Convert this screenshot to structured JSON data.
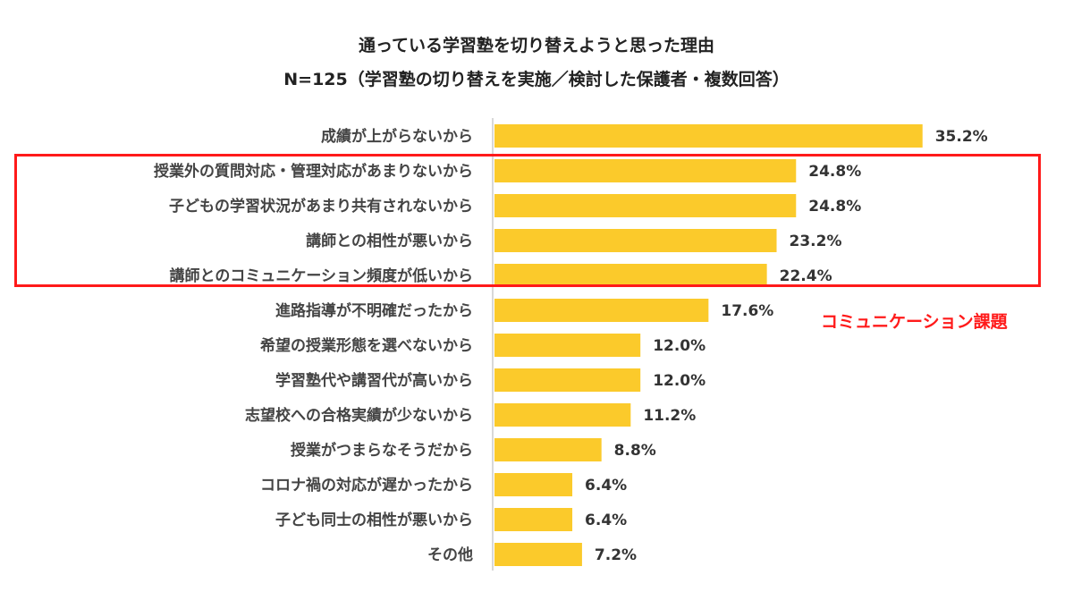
{
  "chart_data": {
    "type": "bar",
    "orientation": "horizontal",
    "title": "通っている学習塾を切り替えようと思った理由",
    "subtitle": "N=125（学習塾の切り替えを実施／検討した保護者・複数回答）",
    "categories": [
      "成績が上がらないから",
      "授業外の質問対応・管理対応があまりないから",
      "子どもの学習状況があまり共有されないから",
      "講師との相性が悪いから",
      "講師とのコミュニケーション頻度が低いから",
      "進路指導が不明確だったから",
      "希望の授業形態を選べないから",
      "学習塾代や講習代が高いから",
      "志望校への合格実績が少ないから",
      "授業がつまらなそうだから",
      "コロナ禍の対応が遅かったから",
      "子ども同士の相性が悪いから",
      "その他"
    ],
    "values": [
      35.2,
      24.8,
      24.8,
      23.2,
      22.4,
      17.6,
      12.0,
      12.0,
      11.2,
      8.8,
      6.4,
      6.4,
      7.2
    ],
    "value_labels": [
      "35.2%",
      "24.8%",
      "24.8%",
      "23.2%",
      "22.4%",
      "17.6%",
      "12.0%",
      "12.0%",
      "11.2%",
      "8.8%",
      "6.4%",
      "6.4%",
      "7.2%"
    ],
    "unit": "%",
    "bar_color": "#fbca2b",
    "axis_color": "#cccccc",
    "highlight": {
      "categories": [
        "授業外の質問対応・管理対応があまりないから",
        "子どもの学習状況があまり共有されないから",
        "講師との相性が悪いから",
        "講師とのコミュニケーション頻度が低いから"
      ],
      "color": "#ff1a1a",
      "annotation": "コミュニケーション課題"
    }
  }
}
